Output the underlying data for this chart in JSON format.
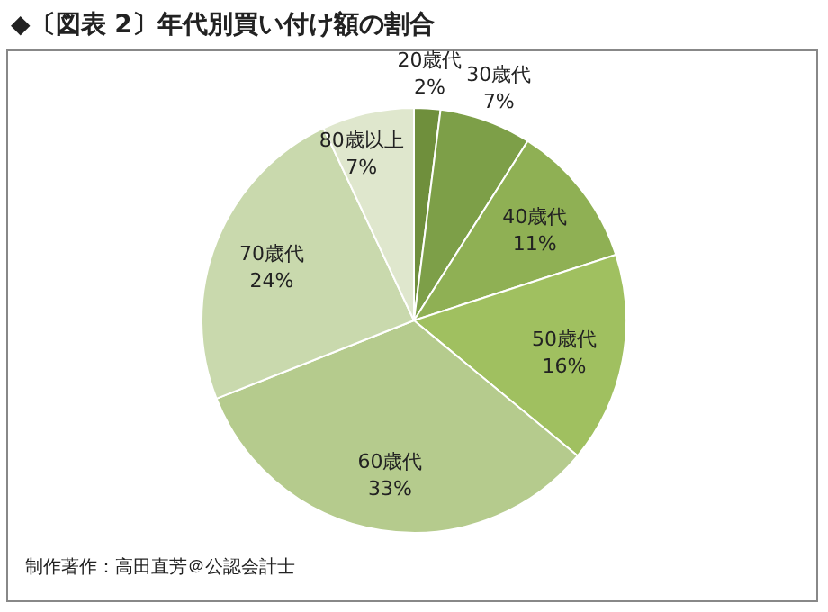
{
  "chart_data": {
    "type": "pie",
    "title": "◆〔図表 2〕年代別買い付け額の割合",
    "categories": [
      "20歳代",
      "30歳代",
      "40歳代",
      "50歳代",
      "60歳代",
      "70歳代",
      "80歳以上"
    ],
    "values": [
      2,
      7,
      11,
      16,
      33,
      24,
      7
    ],
    "value_labels": [
      "2%",
      "7%",
      "11%",
      "16%",
      "33%",
      "24%",
      "7%"
    ],
    "colors": [
      "#6f8f3c",
      "#7d9f48",
      "#8fb054",
      "#a0c060",
      "#b5cb8d",
      "#c9d9ad",
      "#dfe7cd"
    ],
    "annotations": [
      "制作著作：高田直芳＠公認会計士"
    ]
  }
}
